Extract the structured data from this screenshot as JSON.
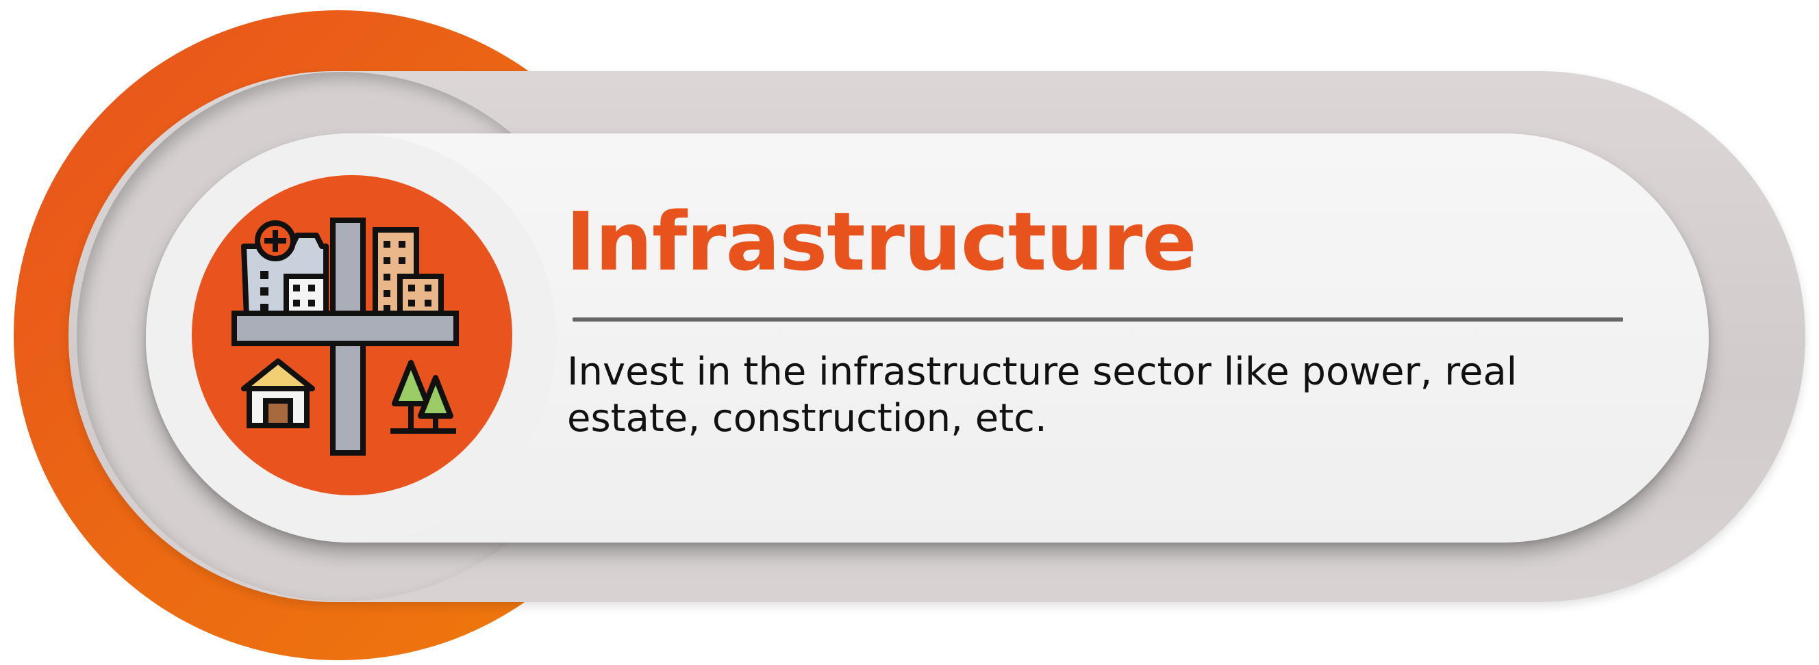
{
  "card": {
    "title": "Infrastructure",
    "description": "Invest in the infrastructure sector like power, real estate, construction, etc.",
    "icon": "city-infrastructure-icon"
  },
  "colors": {
    "accent": "#e8521d",
    "accent_light": "#ef7a0c",
    "panel_grey": "#d5cfcf",
    "panel_white": "#f3f3f3",
    "divider": "#666666",
    "text": "#111111"
  }
}
